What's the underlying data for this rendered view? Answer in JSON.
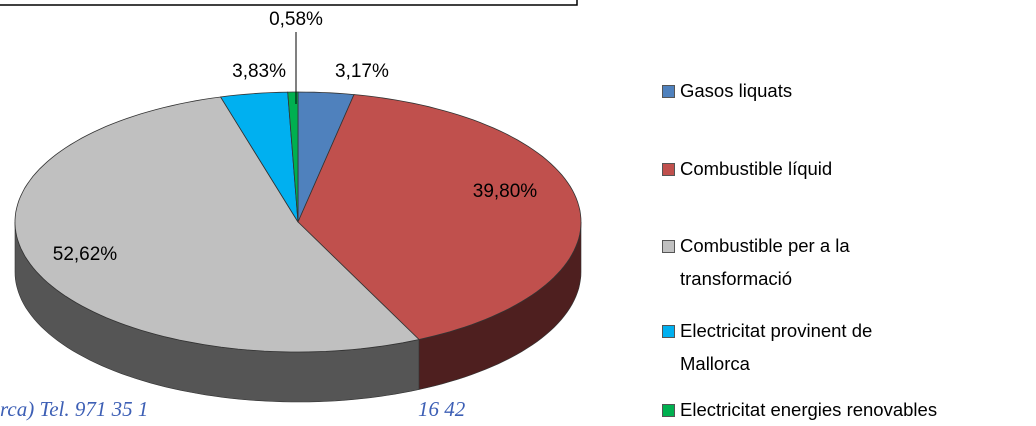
{
  "chart_data": {
    "type": "pie",
    "categories": [
      "Gasos liquats",
      "Combustible líquid",
      "Combustible per a la transformació",
      "Electricitat provinent de Mallorca",
      "Electricitat energies renovables"
    ],
    "values": [
      3.17,
      39.8,
      52.62,
      3.83,
      0.58
    ],
    "value_labels": [
      "3,17%",
      "39,80%",
      "52,62%",
      "3,83%",
      "0,58%"
    ],
    "colors": [
      "#4f81bd",
      "#c0504d",
      "#c0c0c0",
      "#00b0f0",
      "#00b050"
    ],
    "side_colors": [
      "#2f4f7a",
      "#4e1f1f",
      "#555555",
      "#006e99",
      "#006630"
    ],
    "legend": "right"
  },
  "background_text": [
    "rca)   Tel. 971 35 1",
    "16 42"
  ]
}
